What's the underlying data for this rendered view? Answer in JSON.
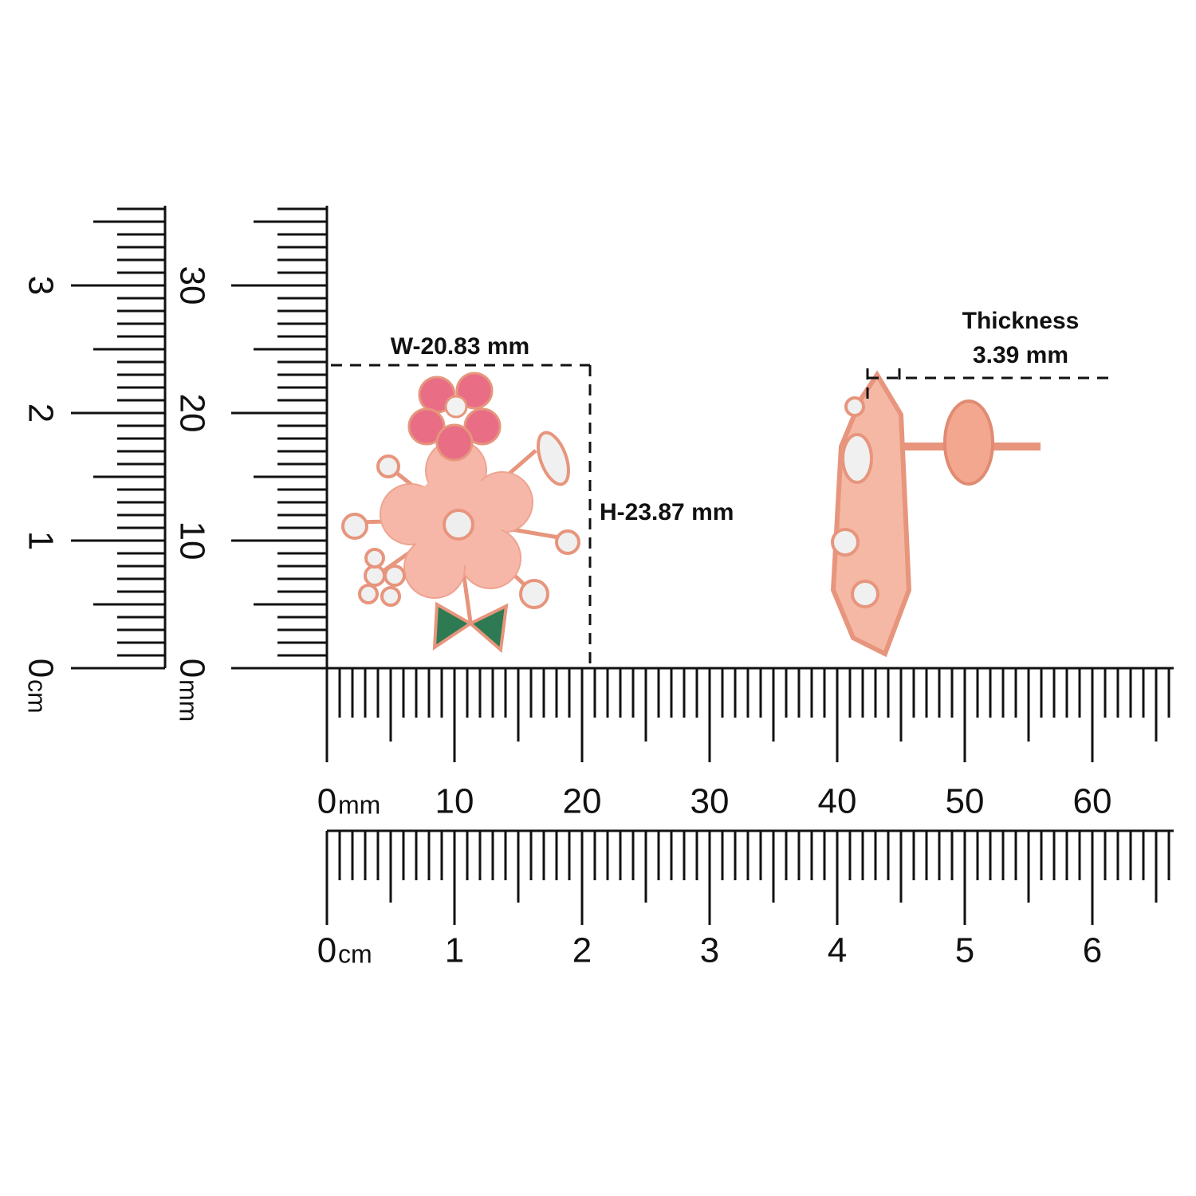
{
  "annotations": {
    "width": "W-20.83 mm",
    "height": "H-23.87 mm",
    "thickness_title": "Thickness",
    "thickness": "3.39 mm"
  },
  "rulers": {
    "horizontal_mm": {
      "labels": [
        "0",
        "10",
        "20",
        "30",
        "40",
        "50",
        "60"
      ],
      "unit": "mm"
    },
    "horizontal_cm": {
      "labels": [
        "0",
        "1",
        "2",
        "3",
        "4",
        "5",
        "6"
      ],
      "unit": "cm"
    },
    "vertical_mm": {
      "labels": [
        "0",
        "10",
        "20",
        "30"
      ],
      "unit": "mm"
    },
    "vertical_cm": {
      "labels": [
        "0",
        "1",
        "2",
        "3"
      ],
      "unit": "cm"
    }
  }
}
